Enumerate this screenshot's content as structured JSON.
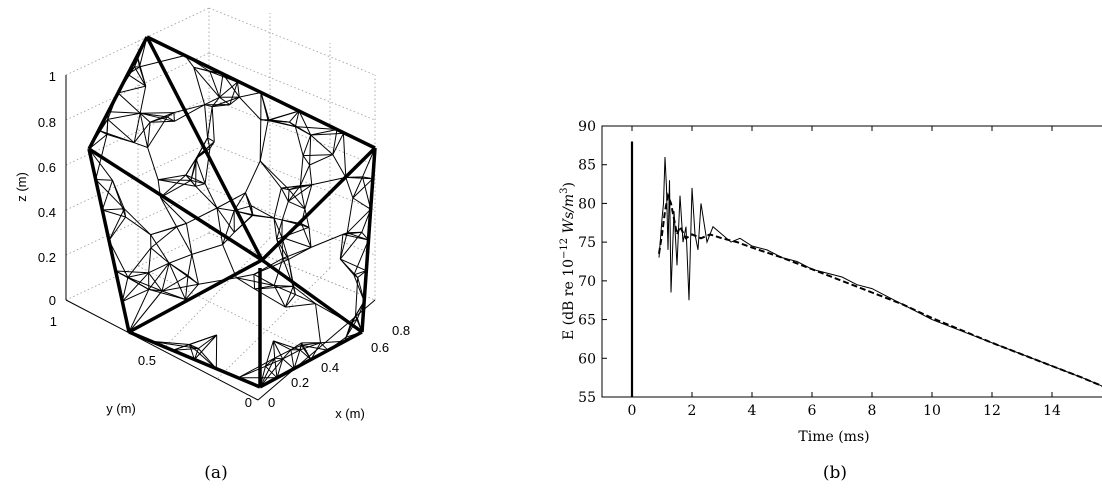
{
  "panel_a": {
    "caption": "(a)",
    "z_label": "z (m)",
    "y_label": "y (m)",
    "x_label": "x (m)",
    "z_ticks": [
      "0",
      "0.2",
      "0.4",
      "0.6",
      "0.8",
      "1"
    ],
    "y_ticks": [
      "0",
      "0.5",
      "1"
    ],
    "x_ticks": [
      "0",
      "0.2",
      "0.4",
      "0.6",
      "0.8"
    ]
  },
  "panel_b": {
    "caption": "(b)",
    "xlabel": "Time (ms)",
    "ylabel_prefix": "E (dB re 10",
    "ylabel_exp": "−12",
    "ylabel_unit": " Ws/m",
    "ylabel_unit_exp": "3",
    "ylabel_close": ")"
  },
  "chart_data": [
    {
      "type": "mesh3d",
      "xlabel": "x (m)",
      "ylabel": "y (m)",
      "zlabel": "z (m)",
      "xlim": [
        0,
        0.8
      ],
      "ylim": [
        0,
        1
      ],
      "zlim": [
        0,
        1
      ],
      "x_ticks": [
        0,
        0.2,
        0.4,
        0.6,
        0.8
      ],
      "y_ticks": [
        0,
        0.5,
        1
      ],
      "z_ticks": [
        0,
        0.2,
        0.4,
        0.6,
        0.8,
        1
      ],
      "grid": true
    },
    {
      "type": "line",
      "xlabel": "Time (ms)",
      "ylabel": "E (dB re 10^-12 Ws/m^3)",
      "xlim": [
        -1,
        16
      ],
      "ylim": [
        55,
        90
      ],
      "x_ticks": [
        0,
        2,
        4,
        6,
        8,
        10,
        12,
        14
      ],
      "y_ticks": [
        55,
        60,
        65,
        70,
        75,
        80,
        85,
        90
      ],
      "grid": false,
      "impulse": {
        "x": 0,
        "y": 88
      },
      "series": [
        {
          "style": "solid",
          "x": [
            0.9,
            1.0,
            1.05,
            1.1,
            1.15,
            1.2,
            1.25,
            1.3,
            1.4,
            1.5,
            1.6,
            1.7,
            1.8,
            1.9,
            2.0,
            2.1,
            2.2,
            2.3,
            2.5,
            2.7,
            3.0,
            3.3,
            3.6,
            4.0,
            4.5,
            5.0,
            5.5,
            6.0,
            6.5,
            7.0,
            7.5,
            8.0,
            9.0,
            10.0,
            11.0,
            12.0,
            13.0,
            14.0,
            15.0,
            15.8
          ],
          "y": [
            73,
            78,
            80,
            86,
            82,
            74,
            83,
            68.5,
            79,
            72,
            81,
            75,
            77,
            67.5,
            82,
            76,
            74,
            80,
            75,
            77,
            76,
            75,
            75.5,
            74.5,
            74,
            73,
            72.5,
            71.5,
            71,
            70.5,
            69.5,
            69,
            67,
            65,
            63.5,
            62,
            60.5,
            59,
            57.5,
            56.2
          ]
        },
        {
          "style": "dashed",
          "x": [
            0.9,
            1.0,
            1.1,
            1.2,
            1.3,
            1.4,
            1.5,
            1.6,
            1.8,
            2.0,
            2.3,
            2.6,
            3.0,
            3.5,
            4.0,
            5.0,
            6.0,
            7.0,
            8.0,
            9.0,
            10.0,
            11.0,
            12.0,
            13.0,
            14.0,
            15.0,
            15.8
          ],
          "y": [
            73.5,
            76,
            79,
            81,
            80,
            78,
            76,
            77,
            75.5,
            76,
            75.5,
            76,
            75.5,
            75,
            74.3,
            73,
            71.5,
            70,
            68.5,
            67,
            65.2,
            63.6,
            62,
            60.5,
            59,
            57.5,
            56.2
          ]
        }
      ]
    }
  ]
}
